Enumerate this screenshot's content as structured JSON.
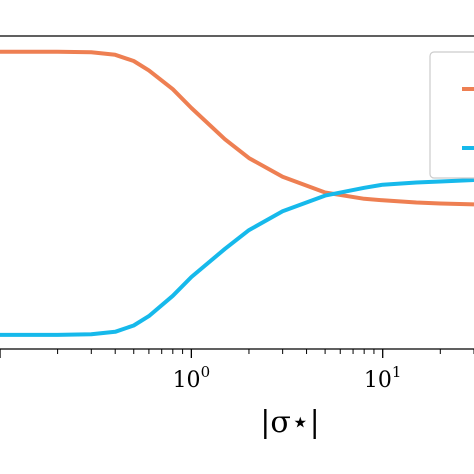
{
  "chart_data": {
    "type": "line",
    "title": "",
    "xlabel": "|σ⋆|",
    "ylabel": "",
    "xscale": "log",
    "xlim": [
      0.1,
      30
    ],
    "ylim": [
      0,
      1
    ],
    "grid": false,
    "legend_position": "top-right",
    "x_ticks_major": [
      {
        "value": 1,
        "base": "10",
        "exp": "0"
      },
      {
        "value": 10,
        "base": "10",
        "exp": "1"
      }
    ],
    "series": [
      {
        "color": "#ee7f52",
        "x": [
          0.1,
          0.2,
          0.3,
          0.4,
          0.5,
          0.6,
          0.8,
          1,
          1.5,
          2,
          3,
          5,
          8,
          10,
          15,
          20,
          30
        ],
        "y": [
          0.95,
          0.95,
          0.948,
          0.94,
          0.92,
          0.89,
          0.83,
          0.77,
          0.67,
          0.61,
          0.55,
          0.5,
          0.48,
          0.475,
          0.468,
          0.465,
          0.462
        ]
      },
      {
        "color": "#16b9eb",
        "x": [
          0.1,
          0.2,
          0.3,
          0.4,
          0.5,
          0.6,
          0.8,
          1,
          1.5,
          2,
          3,
          5,
          8,
          10,
          15,
          20,
          30
        ],
        "y": [
          0.045,
          0.045,
          0.047,
          0.055,
          0.075,
          0.105,
          0.17,
          0.23,
          0.32,
          0.38,
          0.44,
          0.49,
          0.515,
          0.525,
          0.532,
          0.535,
          0.54
        ]
      }
    ]
  }
}
